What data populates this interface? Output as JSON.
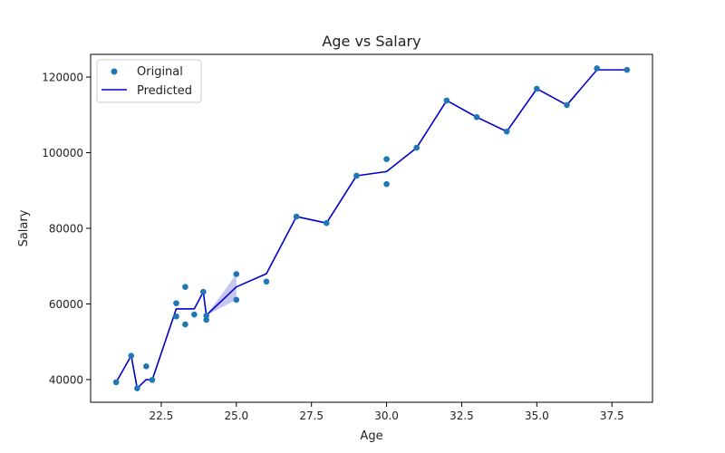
{
  "chart_data": {
    "type": "scatter",
    "title": "Age vs Salary",
    "xlabel": "Age",
    "ylabel": "Salary",
    "xlim": [
      20.15,
      38.85
    ],
    "ylim": [
      34000,
      126000
    ],
    "xticks": [
      22.5,
      25.0,
      27.5,
      30.0,
      32.5,
      35.0,
      37.5
    ],
    "xtick_labels": [
      "22.5",
      "25.0",
      "27.5",
      "30.0",
      "32.5",
      "35.0",
      "37.5"
    ],
    "yticks": [
      40000,
      60000,
      80000,
      100000,
      120000
    ],
    "ytick_labels": [
      "40000",
      "60000",
      "80000",
      "100000",
      "120000"
    ],
    "grid": false,
    "legend_position": "top-left",
    "series": [
      {
        "name": "Original",
        "type": "scatter",
        "color": "#1f77b4",
        "points": [
          [
            21.0,
            39300
          ],
          [
            21.5,
            46300
          ],
          [
            21.7,
            37700
          ],
          [
            22.0,
            43500
          ],
          [
            22.2,
            39900
          ],
          [
            23.0,
            60200
          ],
          [
            23.0,
            56700
          ],
          [
            23.3,
            64500
          ],
          [
            23.3,
            54600
          ],
          [
            23.6,
            57200
          ],
          [
            23.9,
            63200
          ],
          [
            24.0,
            55800
          ],
          [
            24.0,
            56900
          ],
          [
            25.0,
            67900
          ],
          [
            25.0,
            61100
          ],
          [
            26.0,
            65900
          ],
          [
            27.0,
            83100
          ],
          [
            28.0,
            81400
          ],
          [
            29.0,
            93900
          ],
          [
            30.0,
            98300
          ],
          [
            30.0,
            91700
          ],
          [
            31.0,
            101300
          ],
          [
            32.0,
            113800
          ],
          [
            33.0,
            109400
          ],
          [
            34.0,
            105600
          ],
          [
            35.0,
            116900
          ],
          [
            36.0,
            112600
          ],
          [
            37.0,
            122300
          ],
          [
            38.0,
            121900
          ]
        ]
      },
      {
        "name": "Predicted",
        "type": "line",
        "color": "#0000cd",
        "points": [
          [
            21.0,
            39300
          ],
          [
            21.5,
            46300
          ],
          [
            21.7,
            37700
          ],
          [
            22.0,
            40000
          ],
          [
            22.2,
            39900
          ],
          [
            23.0,
            58700
          ],
          [
            23.3,
            58700
          ],
          [
            23.6,
            58700
          ],
          [
            23.9,
            63200
          ],
          [
            24.0,
            57000
          ],
          [
            25.0,
            64500
          ],
          [
            26.0,
            68000
          ],
          [
            27.0,
            83100
          ],
          [
            28.0,
            81400
          ],
          [
            29.0,
            93900
          ],
          [
            30.0,
            95000
          ],
          [
            31.0,
            101300
          ],
          [
            32.0,
            113800
          ],
          [
            33.0,
            109400
          ],
          [
            34.0,
            105600
          ],
          [
            35.0,
            116900
          ],
          [
            36.0,
            112600
          ],
          [
            37.0,
            121900
          ],
          [
            38.0,
            121900
          ]
        ],
        "band": {
          "color": "#8080e0",
          "points": [
            [
              24.0,
              57000,
              57000
            ],
            [
              25.0,
              61100,
              67900
            ]
          ]
        }
      }
    ]
  }
}
